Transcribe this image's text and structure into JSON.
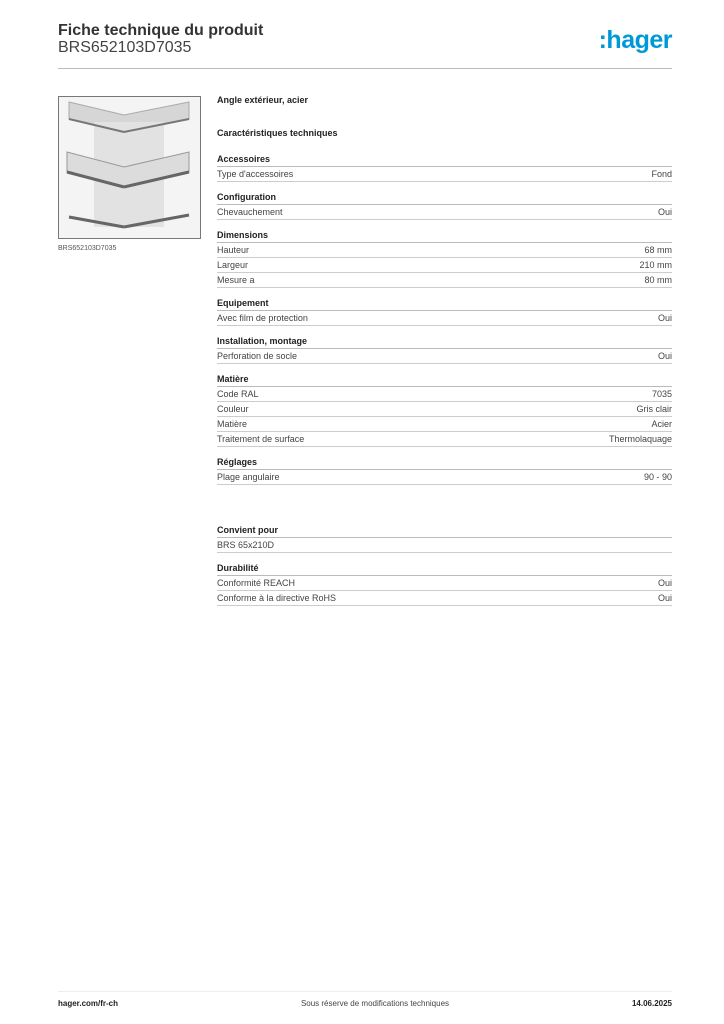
{
  "header": {
    "title": "Fiche technique du produit",
    "subtitle": "BRS652103D7035",
    "logo": ":hager",
    "brand_color": "#0099d8"
  },
  "image": {
    "caption": "BRS652103D7035"
  },
  "description": "Angle extérieur, acier",
  "tech_title": "Caractéristiques techniques",
  "sections": [
    {
      "title": "Accessoires",
      "rows": [
        {
          "label": "Type d'accessoires",
          "value": "Fond"
        }
      ]
    },
    {
      "title": "Configuration",
      "rows": [
        {
          "label": "Chevauchement",
          "value": "Oui"
        }
      ]
    },
    {
      "title": "Dimensions",
      "rows": [
        {
          "label": "Hauteur",
          "value": "68 mm"
        },
        {
          "label": "Largeur",
          "value": "210 mm"
        },
        {
          "label": "Mesure a",
          "value": "80 mm"
        }
      ]
    },
    {
      "title": "Equipement",
      "rows": [
        {
          "label": "Avec film de protection",
          "value": "Oui"
        }
      ]
    },
    {
      "title": "Installation, montage",
      "rows": [
        {
          "label": "Perforation de socle",
          "value": "Oui"
        }
      ]
    },
    {
      "title": "Matière",
      "rows": [
        {
          "label": "Code RAL",
          "value": "7035"
        },
        {
          "label": "Couleur",
          "value": "Gris clair"
        },
        {
          "label": "Matière",
          "value": "Acier"
        },
        {
          "label": "Traitement de surface",
          "value": "Thermolaquage"
        }
      ]
    },
    {
      "title": "Réglages",
      "rows": [
        {
          "label": "Plage angulaire",
          "value": "90 - 90"
        }
      ]
    }
  ],
  "sections2": [
    {
      "title": "Convient pour",
      "rows": [
        {
          "label": "BRS 65x210D",
          "value": ""
        }
      ]
    },
    {
      "title": "Durabilité",
      "rows": [
        {
          "label": "Conformité REACH",
          "value": "Oui"
        },
        {
          "label": "Conforme à la directive RoHS",
          "value": "Oui"
        }
      ]
    }
  ],
  "footer": {
    "site": "hager.com/fr-ch",
    "note": "Sous réserve de modifications techniques",
    "date": "14.06.2025"
  }
}
